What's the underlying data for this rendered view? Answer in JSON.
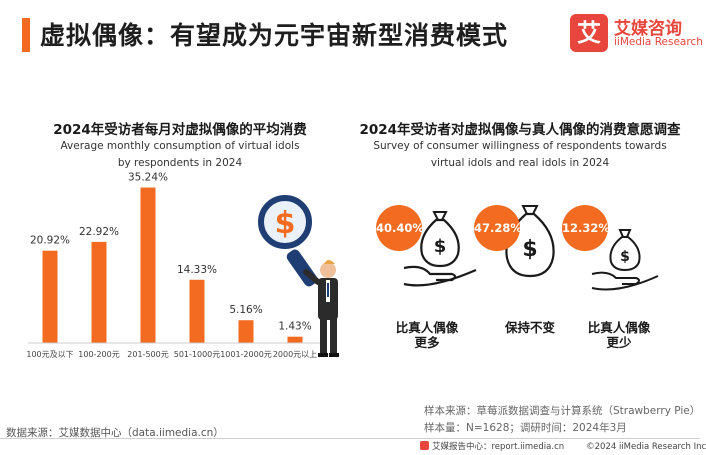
{
  "header": {
    "title": "虚拟偶像：有望成为元宇宙新型消费模式",
    "logo_mark": "艾",
    "logo_cn": "艾媒咨询",
    "logo_en": "iiMedia Research"
  },
  "left_panel": {
    "title": "2024年受访者每月对虚拟偶像的平均消费",
    "subtitle": "Average monthly consumption of virtual idols by respondents in 2024"
  },
  "right_panel": {
    "title": "2024年受访者对虚拟偶像与真人偶像的消费意愿调查",
    "subtitle": "Survey of consumer willingness of respondents towards virtual idols and real idols in 2024",
    "options": [
      {
        "value": "40.40%",
        "label": "比真人偶像更多"
      },
      {
        "value": "47.28%",
        "label": "保持不变"
      },
      {
        "value": "12.32%",
        "label": "比真人偶像更少"
      }
    ]
  },
  "chart_data": [
    {
      "type": "bar",
      "title": "2024年受访者每月对虚拟偶像的平均消费",
      "subtitle": "Average monthly consumption of virtual idols by respondents in 2024",
      "categories": [
        "100元及以下",
        "100-200元",
        "201-500元",
        "501-1000元",
        "1001-2000元",
        "2000元以上"
      ],
      "values": [
        20.92,
        22.92,
        35.24,
        14.33,
        5.16,
        1.43
      ],
      "value_labels": [
        "20.92%",
        "22.92%",
        "35.24%",
        "14.33%",
        "5.16%",
        "1.43%"
      ],
      "unit": "%",
      "ylim": [
        0,
        40
      ],
      "grid": false,
      "color": "#f26b21"
    },
    {
      "type": "pictogram",
      "title": "2024年受访者对虚拟偶像与真人偶像的消费意愿调查",
      "subtitle": "Survey of consumer willingness of respondents towards virtual idols and real idols in 2024",
      "categories": [
        "比真人偶像更多",
        "保持不变",
        "比真人偶像更少"
      ],
      "values": [
        40.4,
        47.28,
        12.32
      ],
      "unit": "%"
    }
  ],
  "footer": {
    "data_source": "数据来源：艾媒数据中心（data.iimedia.cn）",
    "sample_source": "样本来源：草莓派数据调查与计算系统（Strawberry Pie）",
    "sample_info": "样本量：N=1628；调研时间：2024年3月",
    "report_center": "艾媒报告中心：report.iimedia.cn",
    "copyright": "©2024  iiMedia Research  Inc"
  }
}
